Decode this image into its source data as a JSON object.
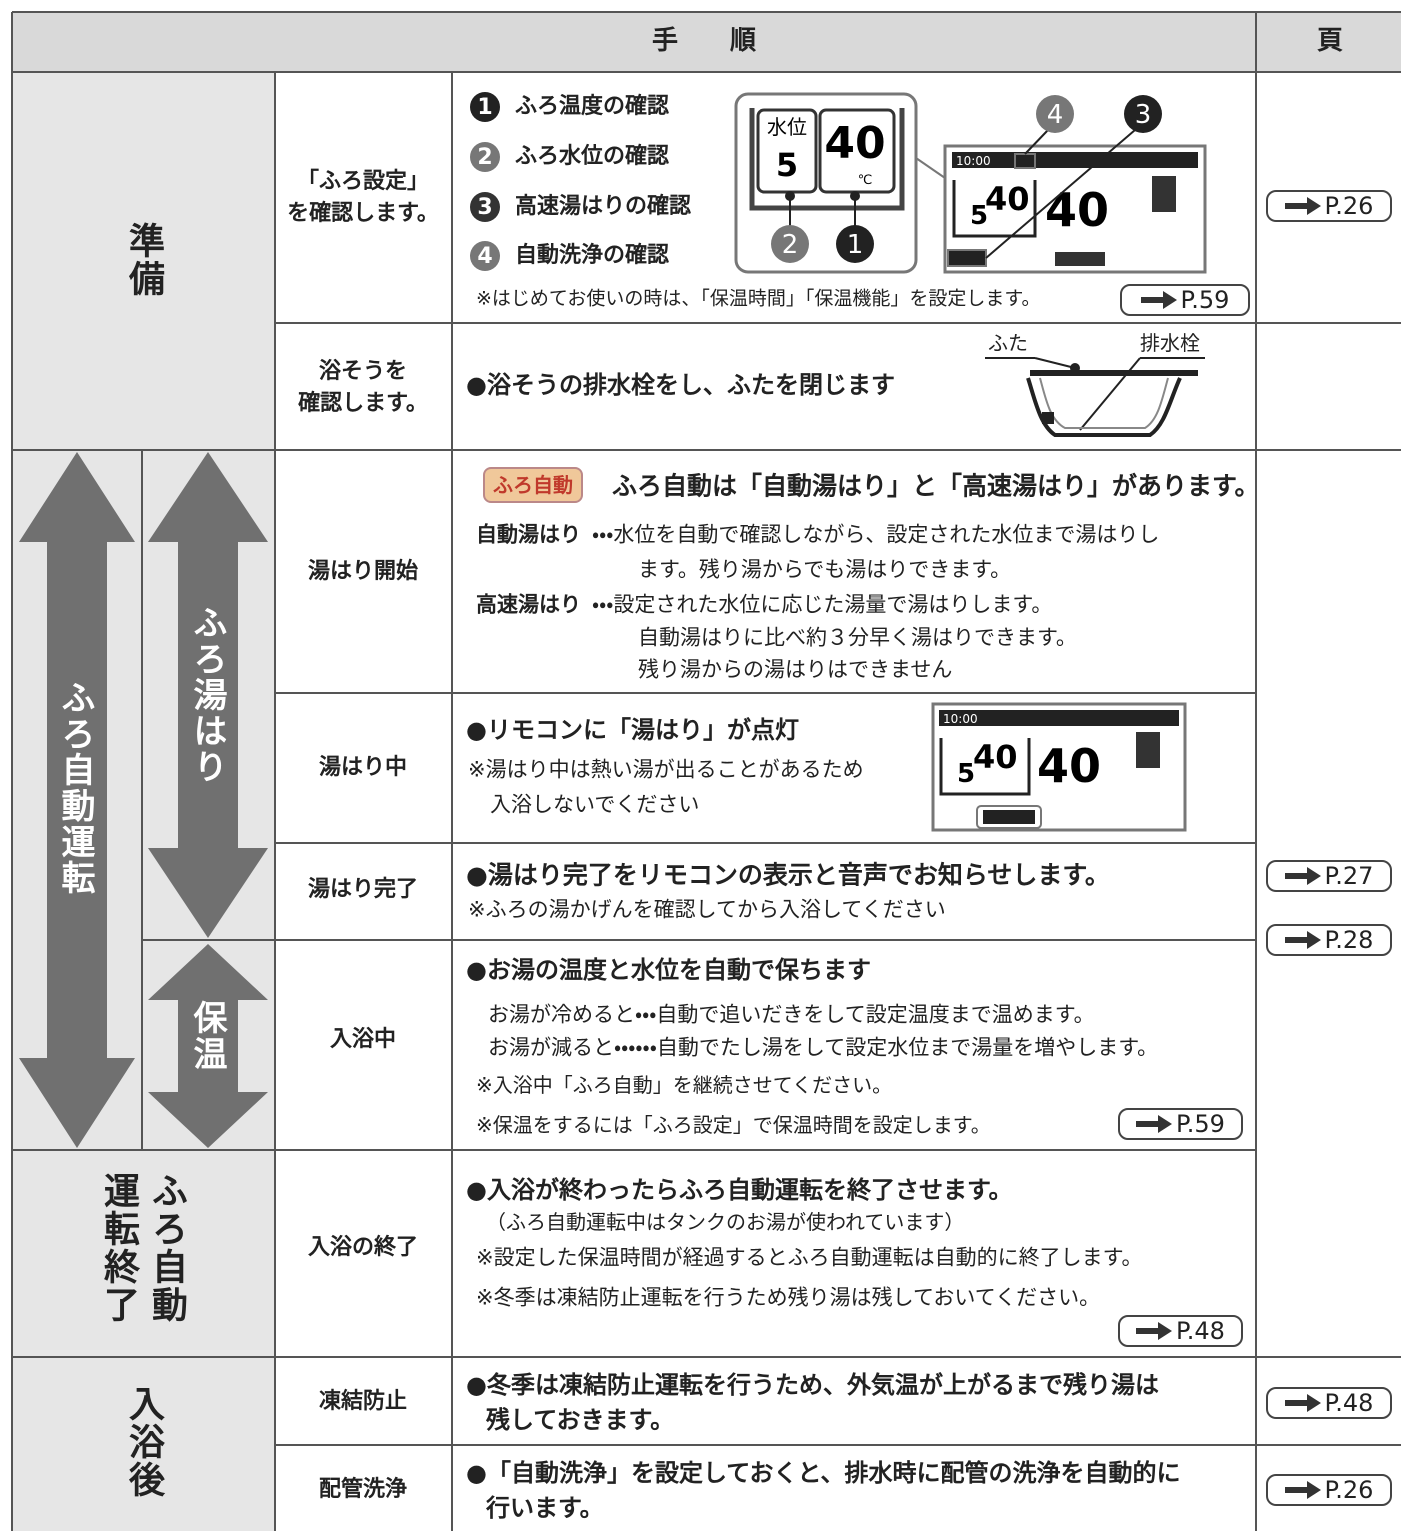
{
  "header": {
    "procedure": "手　　順",
    "page": "頁"
  },
  "prep": {
    "label": "準備",
    "check_settings": {
      "step": [
        "「ふろ設定」",
        "を確認します。"
      ],
      "items": [
        {
          "num": "1",
          "text": "ふろ温度の確認"
        },
        {
          "num": "2",
          "text": "ふろ水位の確認"
        },
        {
          "num": "3",
          "text": "高速湯はりの確認"
        },
        {
          "num": "4",
          "text": "自動洗浄の確認"
        }
      ],
      "panel": {
        "level_label": "水位",
        "level": "5",
        "temp": "40",
        "unit": "℃"
      },
      "lcd": {
        "time": "10:00",
        "level": "5",
        "temp": "40",
        "set_temp": "40"
      },
      "note": "※はじめてお使いの時は、「保温時間」「保温機能」を設定します。",
      "ref": "P.59",
      "page": "P.26"
    },
    "check_tub": {
      "step": [
        "浴そうを",
        "確認します。"
      ],
      "text": "●浴そうの排水栓をし、ふたを閉じます",
      "lid": "ふた",
      "plug": "排水栓"
    }
  },
  "auto": {
    "label": "ふろ自動運転",
    "fill_label": "ふろ湯はり",
    "keep_label": "保温",
    "pages": [
      "P.27",
      "P.28"
    ],
    "start": {
      "step": "湯はり開始",
      "button": "ふろ自動",
      "heading": "ふろ自動は「自動湯はり」と「高速湯はり」があります。",
      "auto_term": "自動湯はり",
      "auto_lines": [
        "・・・水位を自動で確認しながら、設定された水位まで湯はりし",
        "ます。残り湯からでも湯はりできます。"
      ],
      "fast_term": "高速湯はり",
      "fast_lines": [
        "・・・設定された水位に応じた湯量で湯はりします。",
        "自動湯はりに比べ約３分早く湯はりできます。",
        "残り湯からの湯はりはできません"
      ]
    },
    "filling": {
      "step": "湯はり中",
      "text": "●リモコンに「湯はり」が点灯",
      "notes": [
        "※湯はり中は熱い湯が出ることがあるため",
        "入浴しないでください"
      ],
      "lcd": {
        "time": "10:00",
        "level": "5",
        "temp": "40",
        "set_temp": "40"
      }
    },
    "done": {
      "step": "湯はり完了",
      "text": "●湯はり完了をリモコンの表示と音声でお知らせします。",
      "note": "※ふろの湯かげんを確認してから入浴してください"
    },
    "bathing": {
      "step": "入浴中",
      "text": "●お湯の温度と水位を自動で保ちます",
      "lines": [
        "お湯が冷めると・・・自動で追いだきをして設定温度まで温めます。",
        "お湯が減ると・・・・・・自動でたし湯をして設定水位まで湯量を増やします。"
      ],
      "notes": [
        "※入浴中「ふろ自動」を継続させてください。",
        "※保温をするには「ふろ設定」で保温時間を設定します。"
      ],
      "ref": "P.59"
    }
  },
  "end": {
    "label": [
      "運転終了",
      "ふろ自動"
    ],
    "step": "入浴の終了",
    "text": "●入浴が終わったらふろ自動運転を終了させます。",
    "sub": "（ふろ自動運転中はタンクのお湯が使われています）",
    "notes": [
      "※設定した保温時間が経過するとふろ自動運転は自動的に終了します。",
      "※冬季は凍結防止運転を行うため残り湯は残しておいてください。"
    ],
    "ref": "P.48"
  },
  "after": {
    "label": "入浴後",
    "freeze": {
      "step": "凍結防止",
      "lines": [
        "●冬季は凍結防止運転を行うため、外気温が上がるまで残り湯は",
        "残しておきます。"
      ],
      "page": "P.48"
    },
    "clean": {
      "step": "配管洗浄",
      "lines": [
        "●「自動洗浄」を設定しておくと、排水時に配管の洗浄を自動的に",
        "行います。"
      ],
      "page": "P.26"
    }
  }
}
